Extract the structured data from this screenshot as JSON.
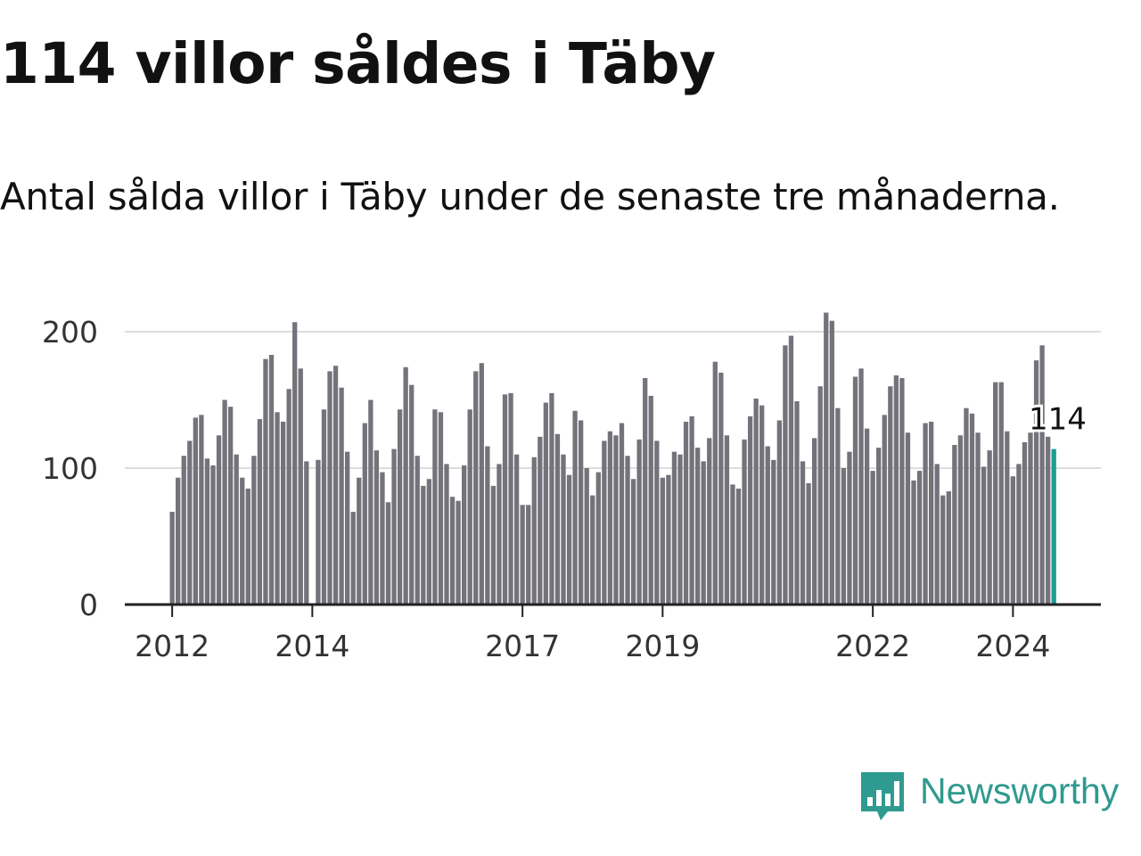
{
  "header": {
    "title": "114 villor såldes i Täby",
    "subtitle": "Antal sålda villor i Täby under de senaste tre månaderna."
  },
  "brand": {
    "name": "Newsworthy",
    "icon": "newsworthy-logo-icon",
    "color": "#2f9a8f"
  },
  "chart_data": {
    "type": "bar",
    "title": "114 villor såldes i Täby",
    "subtitle": "Antal sålda villor i Täby under de senaste tre månaderna.",
    "xlabel": "",
    "ylabel": "",
    "ylim": [
      0,
      200
    ],
    "y_ticks": [
      0,
      100,
      200
    ],
    "x_ticks": [
      "2012",
      "2014",
      "2017",
      "2019",
      "2022",
      "2024"
    ],
    "grid": true,
    "colors": {
      "bar": "#74727a",
      "highlight": "#1a9e92",
      "grid": "#dddddd",
      "axis": "#222222"
    },
    "highlight": {
      "value": 114,
      "label": "114"
    },
    "values": [
      68,
      93,
      109,
      120,
      137,
      139,
      107,
      102,
      124,
      150,
      145,
      110,
      93,
      85,
      109,
      136,
      180,
      183,
      141,
      134,
      158,
      207,
      173,
      105,
      0,
      106,
      143,
      171,
      175,
      159,
      112,
      68,
      93,
      133,
      150,
      113,
      97,
      75,
      114,
      143,
      174,
      161,
      109,
      87,
      92,
      143,
      141,
      103,
      79,
      76,
      102,
      143,
      171,
      177,
      116,
      87,
      103,
      154,
      155,
      110,
      73,
      73,
      108,
      123,
      148,
      155,
      125,
      110,
      95,
      142,
      135,
      100,
      80,
      97,
      120,
      127,
      124,
      133,
      109,
      92,
      121,
      166,
      153,
      120,
      93,
      95,
      112,
      110,
      134,
      138,
      115,
      105,
      122,
      178,
      170,
      124,
      88,
      85,
      121,
      138,
      151,
      146,
      116,
      106,
      135,
      190,
      197,
      149,
      105,
      89,
      122,
      160,
      214,
      208,
      144,
      100,
      112,
      167,
      173,
      129,
      98,
      115,
      139,
      160,
      168,
      166,
      126,
      91,
      98,
      133,
      134,
      103,
      80,
      83,
      117,
      124,
      144,
      140,
      126,
      101,
      113,
      163,
      163,
      127,
      94,
      103,
      119,
      126,
      179,
      190,
      123,
      114
    ]
  }
}
